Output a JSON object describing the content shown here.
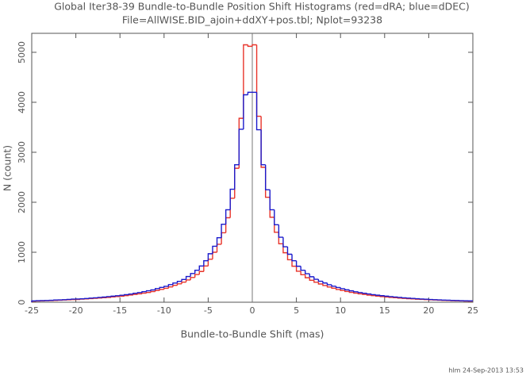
{
  "chart_data": {
    "type": "histogram",
    "title": "Global Iter38-39 Bundle-to-Bundle Position Shift Histograms (red=dRA; blue=dDEC)",
    "subtitle": "File=AllWISE.BID_ajoin+ddXY+pos.tbl; Nplot=93238",
    "x_label": "Bundle-to-Bundle Shift (mas)",
    "y_label": "N (count)",
    "footer": "hlm 24-Sep-2013 13:53",
    "bins": [
      -25,
      -24.5,
      -24,
      -23.5,
      -23,
      -22.5,
      -22,
      -21.5,
      -21,
      -20.5,
      -20,
      -19.5,
      -19,
      -18.5,
      -18,
      -17.5,
      -17,
      -16.5,
      -16,
      -15.5,
      -15,
      -14.5,
      -14,
      -13.5,
      -13,
      -12.5,
      -12,
      -11.5,
      -11,
      -10.5,
      -10,
      -9.5,
      -9,
      -8.5,
      -8,
      -7.5,
      -7,
      -6.5,
      -6,
      -5.5,
      -5,
      -4.5,
      -4,
      -3.5,
      -3,
      -2.5,
      -2,
      -1.5,
      -1,
      -0.5,
      0,
      0.5,
      1,
      1.5,
      2,
      2.5,
      3,
      3.5,
      4,
      4.5,
      5,
      5.5,
      6,
      6.5,
      7,
      7.5,
      8,
      8.5,
      9,
      9.5,
      10,
      10.5,
      11,
      11.5,
      12,
      12.5,
      13,
      13.5,
      14,
      14.5,
      15,
      15.5,
      16,
      16.5,
      17,
      17.5,
      18,
      18.5,
      19,
      19.5,
      20,
      20.5,
      21,
      21.5,
      22,
      22.5,
      23,
      23.5,
      24,
      24.5,
      25
    ],
    "series": [
      {
        "name": "dRA",
        "color": "#e8342a",
        "values": [
          21,
          25,
          27,
          30,
          33,
          37,
          41,
          45,
          49,
          53,
          55,
          62,
          66,
          72,
          78,
          84,
          91,
          97,
          106,
          114,
          121,
          133,
          144,
          156,
          167,
          181,
          196,
          214,
          236,
          257,
          278,
          306,
          338,
          368,
          402,
          445,
          495,
          555,
          615,
          725,
          860,
          1000,
          1160,
          1390,
          1690,
          2080,
          2680,
          3680,
          5150,
          5120,
          5150,
          3720,
          2700,
          2100,
          1700,
          1400,
          1170,
          990,
          850,
          720,
          620,
          550,
          490,
          440,
          400,
          365,
          335,
          305,
          280,
          255,
          235,
          215,
          198,
          182,
          168,
          155,
          143,
          132,
          122,
          113,
          105,
          97,
          90,
          83,
          77,
          71,
          66,
          61,
          56,
          52,
          48,
          44,
          40,
          37,
          34,
          31,
          28,
          26,
          24,
          22
        ]
      },
      {
        "name": "dDEC",
        "color": "#1a1acc",
        "values": [
          26,
          30,
          33,
          35,
          39,
          44,
          47,
          50,
          56,
          62,
          64,
          69,
          75,
          83,
          88,
          97,
          103,
          112,
          121,
          130,
          140,
          151,
          164,
          180,
          193,
          212,
          229,
          246,
          272,
          296,
          318,
          352,
          384,
          418,
          455,
          515,
          575,
          640,
          725,
          830,
          970,
          1120,
          1290,
          1560,
          1850,
          2260,
          2750,
          3460,
          4150,
          4200,
          4200,
          3450,
          2750,
          2250,
          1850,
          1550,
          1300,
          1110,
          960,
          830,
          720,
          640,
          570,
          510,
          460,
          420,
          385,
          350,
          320,
          295,
          270,
          248,
          228,
          210,
          194,
          179,
          165,
          152,
          141,
          131,
          121,
          112,
          104,
          96,
          89,
          82,
          76,
          70,
          65,
          60,
          55,
          51,
          47,
          43,
          40,
          37,
          34,
          31,
          29,
          27
        ]
      }
    ],
    "xlim": [
      -25,
      25
    ],
    "xticks": [
      -25,
      -20,
      -15,
      -10,
      -5,
      0,
      5,
      10,
      15,
      20,
      25
    ],
    "ylim": [
      0,
      5380
    ],
    "yticks": [
      0,
      1000,
      2000,
      3000,
      4000,
      5000
    ],
    "zero_line": true
  }
}
